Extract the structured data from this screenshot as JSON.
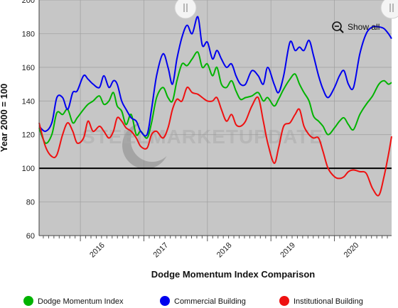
{
  "watermark": "STEELMARKETUPDATE",
  "controls": {
    "show_all_label": "Show all"
  },
  "colors": {
    "plot_background": "#c6c6c6",
    "gridline": "#9e9e9e",
    "reference_line": "#000000",
    "dodge_momentum_index": "#00b300",
    "commercial_building": "#0000ee",
    "institutional_building": "#ee1111"
  },
  "chart_data": {
    "type": "line",
    "title": "",
    "xlabel": "Dodge Momentum Index Comparison",
    "ylabel": "Year 2000 = 100",
    "xlim": [
      2015.35,
      2020.9
    ],
    "ylim": [
      60,
      200
    ],
    "x_ticks": [
      2016,
      2017,
      2018,
      2019,
      2020
    ],
    "x_tick_labels": [
      "2016",
      "2017",
      "2018",
      "2019",
      "2020"
    ],
    "y_ticks": [
      60,
      80,
      100,
      120,
      140,
      160,
      180,
      200
    ],
    "reference_line": {
      "y": 100
    },
    "grid": true,
    "legend_position": "bottom",
    "series": [
      {
        "name": "Dodge Momentum Index",
        "color_key": "dodge_momentum_index",
        "points": [
          [
            2015.35,
            124
          ],
          [
            2015.45,
            115
          ],
          [
            2015.55,
            120
          ],
          [
            2015.63,
            133
          ],
          [
            2015.72,
            132
          ],
          [
            2015.8,
            135
          ],
          [
            2015.88,
            127
          ],
          [
            2015.95,
            130
          ],
          [
            2016.05,
            135
          ],
          [
            2016.12,
            138
          ],
          [
            2016.2,
            140
          ],
          [
            2016.3,
            143
          ],
          [
            2016.37,
            138
          ],
          [
            2016.45,
            140
          ],
          [
            2016.52,
            145
          ],
          [
            2016.58,
            137
          ],
          [
            2016.65,
            134
          ],
          [
            2016.72,
            126
          ],
          [
            2016.8,
            132
          ],
          [
            2016.88,
            120
          ],
          [
            2016.95,
            122
          ],
          [
            2017.05,
            118
          ],
          [
            2017.12,
            127
          ],
          [
            2017.2,
            142
          ],
          [
            2017.3,
            148
          ],
          [
            2017.38,
            142
          ],
          [
            2017.45,
            140
          ],
          [
            2017.52,
            152
          ],
          [
            2017.6,
            162
          ],
          [
            2017.68,
            161
          ],
          [
            2017.76,
            165
          ],
          [
            2017.85,
            169
          ],
          [
            2017.92,
            160
          ],
          [
            2018.0,
            162
          ],
          [
            2018.08,
            155
          ],
          [
            2018.15,
            160
          ],
          [
            2018.22,
            150
          ],
          [
            2018.3,
            148
          ],
          [
            2018.38,
            152
          ],
          [
            2018.45,
            146
          ],
          [
            2018.52,
            141
          ],
          [
            2018.6,
            142
          ],
          [
            2018.7,
            143
          ],
          [
            2018.8,
            145
          ],
          [
            2018.88,
            140
          ],
          [
            2018.95,
            142
          ],
          [
            2019.05,
            137
          ],
          [
            2019.12,
            141
          ],
          [
            2019.2,
            147
          ],
          [
            2019.3,
            153
          ],
          [
            2019.38,
            156
          ],
          [
            2019.45,
            150
          ],
          [
            2019.52,
            145
          ],
          [
            2019.6,
            140
          ],
          [
            2019.67,
            131
          ],
          [
            2019.75,
            128
          ],
          [
            2019.82,
            125
          ],
          [
            2019.9,
            120
          ],
          [
            2020.0,
            124
          ],
          [
            2020.08,
            128
          ],
          [
            2020.15,
            130
          ],
          [
            2020.22,
            126
          ],
          [
            2020.3,
            123
          ],
          [
            2020.4,
            132
          ],
          [
            2020.5,
            138
          ],
          [
            2020.6,
            143
          ],
          [
            2020.7,
            150
          ],
          [
            2020.78,
            152
          ],
          [
            2020.85,
            150
          ],
          [
            2020.9,
            151
          ]
        ]
      },
      {
        "name": "Commercial Building",
        "color_key": "commercial_building",
        "points": [
          [
            2015.35,
            125
          ],
          [
            2015.45,
            122
          ],
          [
            2015.55,
            127
          ],
          [
            2015.63,
            142
          ],
          [
            2015.72,
            142
          ],
          [
            2015.8,
            135
          ],
          [
            2015.88,
            145
          ],
          [
            2015.95,
            146
          ],
          [
            2016.05,
            155
          ],
          [
            2016.12,
            153
          ],
          [
            2016.2,
            150
          ],
          [
            2016.3,
            148
          ],
          [
            2016.37,
            155
          ],
          [
            2016.45,
            148
          ],
          [
            2016.52,
            152
          ],
          [
            2016.58,
            150
          ],
          [
            2016.65,
            140
          ],
          [
            2016.72,
            135
          ],
          [
            2016.8,
            130
          ],
          [
            2016.88,
            128
          ],
          [
            2016.95,
            122
          ],
          [
            2017.05,
            120
          ],
          [
            2017.12,
            135
          ],
          [
            2017.2,
            155
          ],
          [
            2017.3,
            168
          ],
          [
            2017.38,
            160
          ],
          [
            2017.45,
            150
          ],
          [
            2017.52,
            165
          ],
          [
            2017.6,
            178
          ],
          [
            2017.68,
            185
          ],
          [
            2017.76,
            180
          ],
          [
            2017.85,
            190
          ],
          [
            2017.92,
            173
          ],
          [
            2018.0,
            175
          ],
          [
            2018.08,
            165
          ],
          [
            2018.15,
            170
          ],
          [
            2018.22,
            165
          ],
          [
            2018.3,
            160
          ],
          [
            2018.38,
            162
          ],
          [
            2018.45,
            155
          ],
          [
            2018.52,
            150
          ],
          [
            2018.6,
            150
          ],
          [
            2018.7,
            158
          ],
          [
            2018.8,
            155
          ],
          [
            2018.88,
            150
          ],
          [
            2018.95,
            160
          ],
          [
            2019.05,
            150
          ],
          [
            2019.12,
            145
          ],
          [
            2019.2,
            155
          ],
          [
            2019.3,
            175
          ],
          [
            2019.38,
            170
          ],
          [
            2019.45,
            172
          ],
          [
            2019.52,
            170
          ],
          [
            2019.6,
            176
          ],
          [
            2019.67,
            167
          ],
          [
            2019.75,
            155
          ],
          [
            2019.82,
            147
          ],
          [
            2019.9,
            142
          ],
          [
            2020.0,
            148
          ],
          [
            2020.08,
            155
          ],
          [
            2020.15,
            158
          ],
          [
            2020.22,
            150
          ],
          [
            2020.3,
            148
          ],
          [
            2020.4,
            168
          ],
          [
            2020.5,
            180
          ],
          [
            2020.6,
            184
          ],
          [
            2020.7,
            184
          ],
          [
            2020.78,
            183
          ],
          [
            2020.85,
            180
          ],
          [
            2020.9,
            177
          ]
        ]
      },
      {
        "name": "Institutional Building",
        "color_key": "institutional_building",
        "points": [
          [
            2015.35,
            127
          ],
          [
            2015.45,
            113
          ],
          [
            2015.55,
            107
          ],
          [
            2015.63,
            108
          ],
          [
            2015.72,
            120
          ],
          [
            2015.8,
            127
          ],
          [
            2015.88,
            122
          ],
          [
            2015.95,
            115
          ],
          [
            2016.05,
            118
          ],
          [
            2016.12,
            128
          ],
          [
            2016.2,
            122
          ],
          [
            2016.3,
            125
          ],
          [
            2016.37,
            122
          ],
          [
            2016.45,
            118
          ],
          [
            2016.52,
            122
          ],
          [
            2016.58,
            130
          ],
          [
            2016.65,
            128
          ],
          [
            2016.72,
            124
          ],
          [
            2016.8,
            122
          ],
          [
            2016.88,
            118
          ],
          [
            2016.95,
            113
          ],
          [
            2017.05,
            112
          ],
          [
            2017.12,
            120
          ],
          [
            2017.2,
            122
          ],
          [
            2017.3,
            118
          ],
          [
            2017.38,
            124
          ],
          [
            2017.45,
            135
          ],
          [
            2017.52,
            141
          ],
          [
            2017.6,
            140
          ],
          [
            2017.68,
            148
          ],
          [
            2017.76,
            145
          ],
          [
            2017.85,
            144
          ],
          [
            2017.92,
            142
          ],
          [
            2018.0,
            140
          ],
          [
            2018.08,
            140
          ],
          [
            2018.15,
            142
          ],
          [
            2018.22,
            135
          ],
          [
            2018.3,
            128
          ],
          [
            2018.38,
            132
          ],
          [
            2018.45,
            126
          ],
          [
            2018.52,
            125
          ],
          [
            2018.6,
            128
          ],
          [
            2018.7,
            137
          ],
          [
            2018.8,
            142
          ],
          [
            2018.88,
            128
          ],
          [
            2018.95,
            115
          ],
          [
            2019.05,
            103
          ],
          [
            2019.12,
            112
          ],
          [
            2019.2,
            125
          ],
          [
            2019.3,
            127
          ],
          [
            2019.38,
            132
          ],
          [
            2019.45,
            135
          ],
          [
            2019.52,
            125
          ],
          [
            2019.6,
            120
          ],
          [
            2019.67,
            118
          ],
          [
            2019.75,
            118
          ],
          [
            2019.82,
            110
          ],
          [
            2019.9,
            100
          ],
          [
            2020.0,
            95
          ],
          [
            2020.08,
            94
          ],
          [
            2020.15,
            95
          ],
          [
            2020.22,
            98
          ],
          [
            2020.3,
            99
          ],
          [
            2020.4,
            98
          ],
          [
            2020.5,
            97
          ],
          [
            2020.6,
            88
          ],
          [
            2020.7,
            84
          ],
          [
            2020.78,
            95
          ],
          [
            2020.85,
            108
          ],
          [
            2020.9,
            119
          ]
        ]
      }
    ]
  }
}
